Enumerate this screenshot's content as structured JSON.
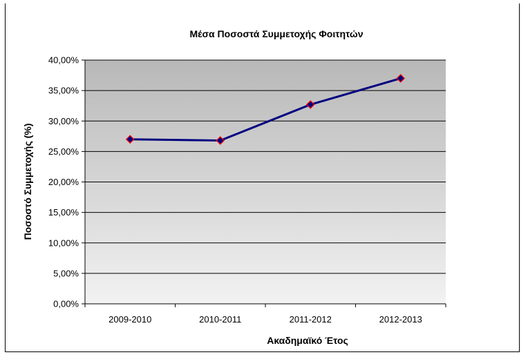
{
  "chart_data": {
    "type": "line",
    "title": "Μέσα Ποσοστά Συμμετοχής Φοιτητών",
    "xlabel": "Ακαδημαϊκό Έτος",
    "ylabel": "Ποσοστό Συμμετοχής (%)",
    "categories": [
      "2009-2010",
      "2010-2011",
      "2011-2012",
      "2012-2013"
    ],
    "series": [
      {
        "values": [
          27.0,
          26.8,
          32.7,
          37.0
        ]
      }
    ],
    "ylim": [
      0,
      40
    ],
    "yticks": [
      0,
      5,
      10,
      15,
      20,
      25,
      30,
      35,
      40
    ],
    "ytick_labels": [
      "0,00%",
      "5,00%",
      "10,00%",
      "15,00%",
      "20,00%",
      "25,00%",
      "30,00%",
      "35,00%",
      "40,00%"
    ],
    "grid": true,
    "legend": "none",
    "colors": {
      "line": "#000080",
      "marker_fill": "#000080",
      "marker_edge": "#ff0000",
      "plot_bg_top": "#b8b8b8",
      "plot_bg_bottom": "#f2f2f2",
      "gridline": "#000000"
    }
  }
}
